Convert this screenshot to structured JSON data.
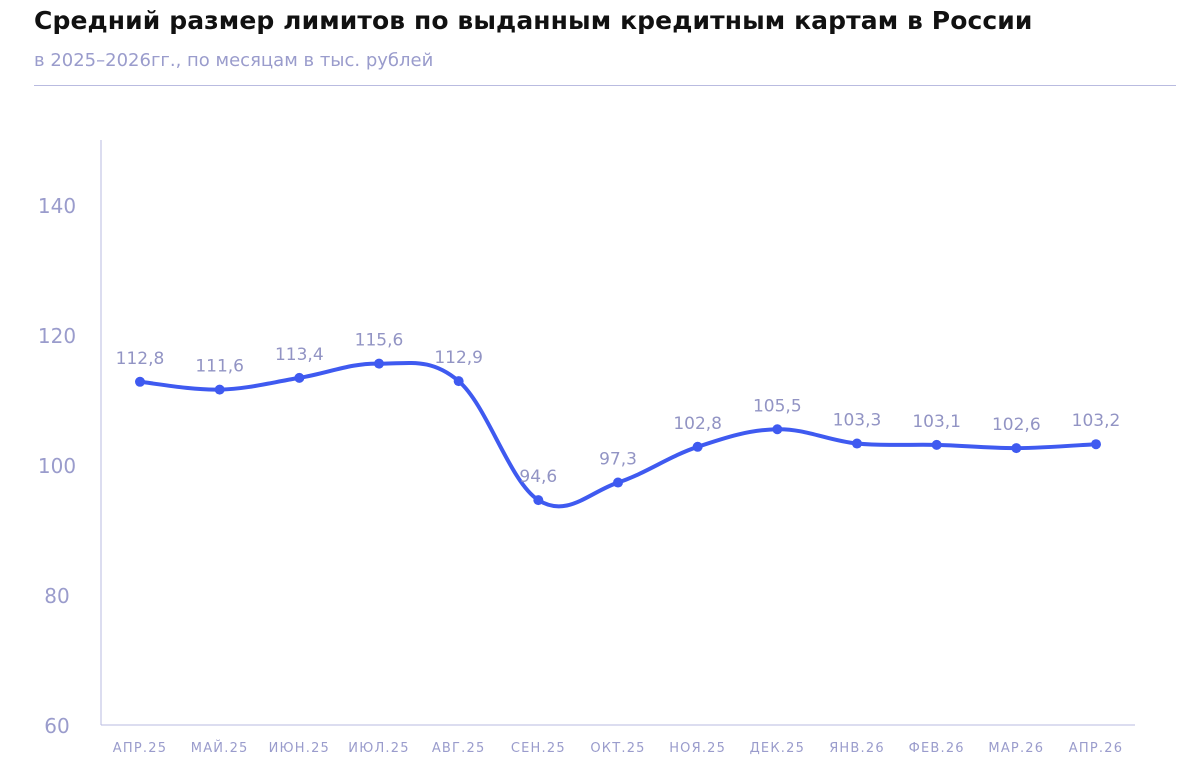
{
  "header": {
    "title": "Средний размер лимитов по выданным кредитным картам в России",
    "subtitle": "в 2025–2026гг., по месяцам в тыс. рублей"
  },
  "chart_data": {
    "type": "line",
    "title": "Средний размер лимитов по выданным кредитным картам в России",
    "subtitle": "в 2025–2026гг., по месяцам в тыс. рублей",
    "xlabel": "",
    "ylabel": "",
    "categories": [
      "АПР.25",
      "МАЙ.25",
      "ИЮН.25",
      "ИЮЛ.25",
      "АВГ.25",
      "СЕН.25",
      "ОКТ.25",
      "НОЯ.25",
      "ДЕК.25",
      "ЯНВ.26",
      "ФЕВ.26",
      "МАР.26",
      "АПР.26"
    ],
    "series": [
      {
        "values": [
          112.8,
          111.6,
          113.4,
          115.6,
          112.9,
          94.6,
          97.3,
          102.8,
          105.5,
          103.3,
          103.1,
          102.6,
          103.2
        ],
        "labels": [
          "112,8",
          "111,6",
          "113,4",
          "115,6",
          "112,9",
          "94,6",
          "97,3",
          "102,8",
          "105,5",
          "103,3",
          "103,1",
          "102,6",
          "103,2"
        ],
        "color": "#3f5af0"
      }
    ],
    "ylim": [
      60,
      150
    ],
    "yticks": [
      60,
      80,
      100,
      120,
      140
    ],
    "grid": false,
    "legend": "none"
  },
  "colors": {
    "line": "#3f5af0",
    "axis": "#b9bbe0",
    "tick_text": "#9a9ccc",
    "label_text": "#9294c4"
  }
}
